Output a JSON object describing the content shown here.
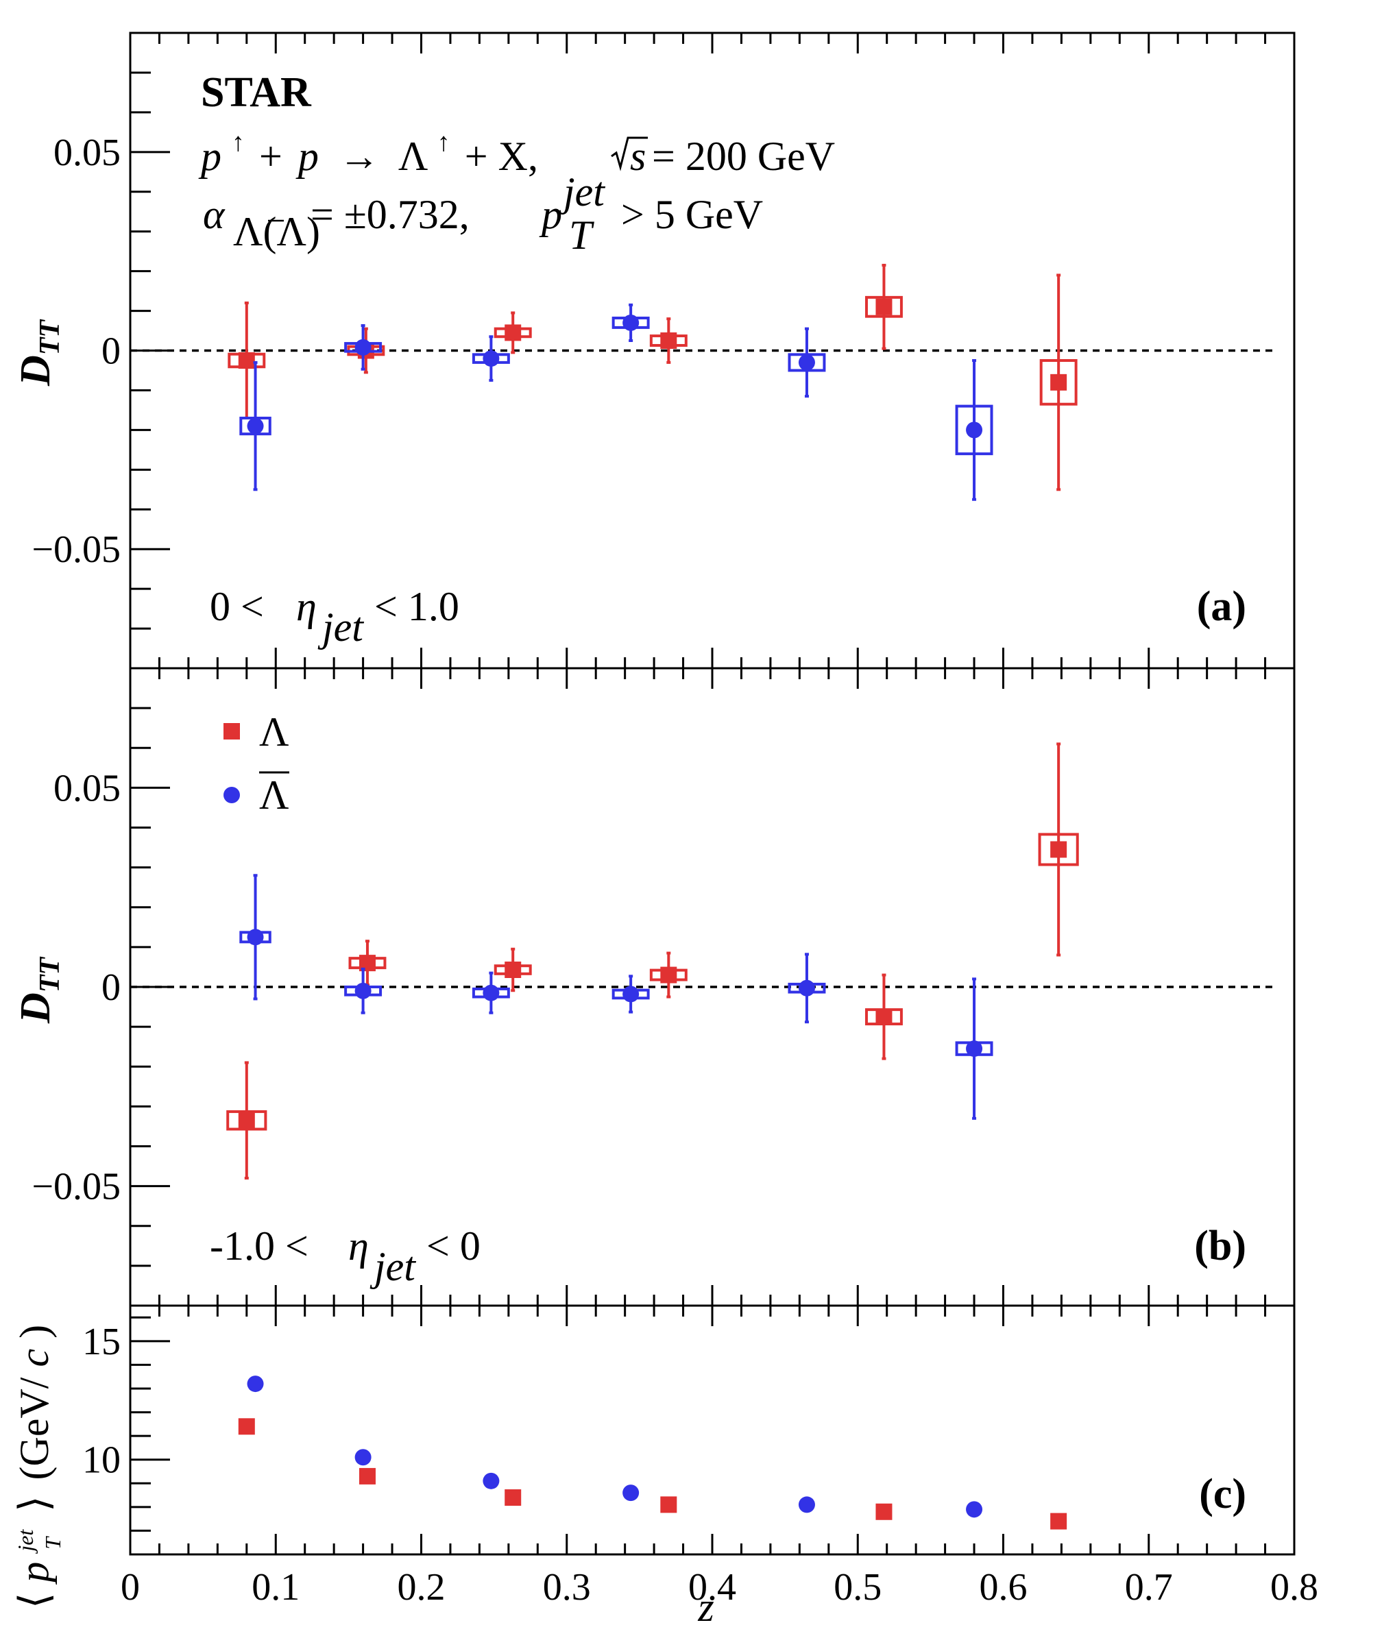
{
  "chart_data": [
    {
      "id": "a",
      "type": "scatter",
      "panel_label": "(a)",
      "ylabel": "D_TT",
      "ylim": [
        -0.08,
        0.08
      ],
      "yticks": [
        -0.05,
        0,
        0.05
      ],
      "ytick_labels": [
        "−0.05",
        "0",
        "0.05"
      ],
      "xlim": [
        0,
        0.8
      ],
      "reference_line": 0,
      "annotations": {
        "experiment": "STAR",
        "reaction_lhs": "p",
        "reaction_plus1": "+",
        "reaction_p2": "p",
        "reaction_arrow": "→",
        "reaction_lambda": "Λ",
        "reaction_rest": "+ X,",
        "sqrt_s_var": "s",
        "energy": "= 200 GeV",
        "alpha_symbol": "α",
        "alpha_sub": "Λ(Λ)",
        "alpha_value": "= ±0.732,",
        "pt_symbol": "p",
        "pt_sup": "jet",
        "pt_sub": "T",
        "pt_cut": "> 5 GeV",
        "eta_low": "0 <",
        "eta_symbol": "η",
        "eta_sub": "jet",
        "eta_high": "< 1.0"
      },
      "series": [
        {
          "name": "Λ",
          "marker": "square",
          "color": "#e03232",
          "points": [
            {
              "x": 0.08,
              "y": -0.0025,
              "err": 0.0145,
              "sys_w": 0.012,
              "sys_h": 0.0016
            },
            {
              "x": 0.162,
              "y": 0.0,
              "err": 0.0055,
              "sys_w": 0.012,
              "sys_h": 0.001
            },
            {
              "x": 0.263,
              "y": 0.0045,
              "err": 0.005,
              "sys_w": 0.012,
              "sys_h": 0.001
            },
            {
              "x": 0.37,
              "y": 0.0025,
              "err": 0.0055,
              "sys_w": 0.012,
              "sys_h": 0.0012
            },
            {
              "x": 0.518,
              "y": 0.011,
              "err": 0.0105,
              "sys_w": 0.012,
              "sys_h": 0.0024
            },
            {
              "x": 0.638,
              "y": -0.008,
              "err": 0.027,
              "sys_w": 0.012,
              "sys_h": 0.0055
            }
          ]
        },
        {
          "name": "Λ̄",
          "marker": "circle",
          "color": "#3232e6",
          "points": [
            {
              "x": 0.086,
              "y": -0.019,
              "err": 0.016,
              "sys_w": 0.01,
              "sys_h": 0.002
            },
            {
              "x": 0.16,
              "y": 0.0008,
              "err": 0.0055,
              "sys_w": 0.012,
              "sys_h": 0.001
            },
            {
              "x": 0.248,
              "y": -0.002,
              "err": 0.0055,
              "sys_w": 0.012,
              "sys_h": 0.001
            },
            {
              "x": 0.344,
              "y": 0.007,
              "err": 0.0045,
              "sys_w": 0.012,
              "sys_h": 0.0012
            },
            {
              "x": 0.465,
              "y": -0.003,
              "err": 0.0085,
              "sys_w": 0.012,
              "sys_h": 0.002
            },
            {
              "x": 0.58,
              "y": -0.02,
              "err": 0.0175,
              "sys_w": 0.012,
              "sys_h": 0.006
            }
          ]
        }
      ]
    },
    {
      "id": "b",
      "type": "scatter",
      "panel_label": "(b)",
      "ylabel": "D_TT",
      "ylim": [
        -0.08,
        0.08
      ],
      "yticks": [
        -0.05,
        0,
        0.05
      ],
      "ytick_labels": [
        "−0.05",
        "0",
        "0.05"
      ],
      "xlim": [
        0,
        0.8
      ],
      "reference_line": 0,
      "annotations": {
        "eta_low": "-1.0 <",
        "eta_symbol": "η",
        "eta_sub": "jet",
        "eta_high": "< 0"
      },
      "legend": {
        "placement": "top-left",
        "entries": [
          {
            "label": "Λ",
            "marker": "square",
            "color": "#e03232"
          },
          {
            "label": "Λ",
            "overline": true,
            "marker": "circle",
            "color": "#3232e6"
          }
        ]
      },
      "series": [
        {
          "name": "Λ",
          "marker": "square",
          "color": "#e03232",
          "points": [
            {
              "x": 0.08,
              "y": -0.0335,
              "err": 0.0145,
              "sys_w": 0.013,
              "sys_h": 0.0022
            },
            {
              "x": 0.163,
              "y": 0.006,
              "err": 0.0055,
              "sys_w": 0.012,
              "sys_h": 0.0012
            },
            {
              "x": 0.263,
              "y": 0.0043,
              "err": 0.0052,
              "sys_w": 0.012,
              "sys_h": 0.001
            },
            {
              "x": 0.37,
              "y": 0.003,
              "err": 0.0055,
              "sys_w": 0.012,
              "sys_h": 0.0012
            },
            {
              "x": 0.518,
              "y": -0.0075,
              "err": 0.0105,
              "sys_w": 0.012,
              "sys_h": 0.0018
            },
            {
              "x": 0.638,
              "y": 0.0345,
              "err": 0.0265,
              "sys_w": 0.013,
              "sys_h": 0.0038
            }
          ]
        },
        {
          "name": "Λ̄",
          "marker": "circle",
          "color": "#3232e6",
          "points": [
            {
              "x": 0.086,
              "y": 0.0125,
              "err": 0.0155,
              "sys_w": 0.01,
              "sys_h": 0.0012
            },
            {
              "x": 0.16,
              "y": -0.001,
              "err": 0.0055,
              "sys_w": 0.012,
              "sys_h": 0.001
            },
            {
              "x": 0.248,
              "y": -0.0015,
              "err": 0.005,
              "sys_w": 0.012,
              "sys_h": 0.001
            },
            {
              "x": 0.344,
              "y": -0.0018,
              "err": 0.0045,
              "sys_w": 0.012,
              "sys_h": 0.001
            },
            {
              "x": 0.465,
              "y": -0.0003,
              "err": 0.0085,
              "sys_w": 0.012,
              "sys_h": 0.001
            },
            {
              "x": 0.58,
              "y": -0.0155,
              "err": 0.0175,
              "sys_w": 0.012,
              "sys_h": 0.0015
            }
          ]
        }
      ]
    },
    {
      "id": "c",
      "type": "scatter",
      "panel_label": "(c)",
      "ylabel_bracket_left": "⟨",
      "ylabel_p": "p",
      "ylabel_sup": "jet",
      "ylabel_sub": "T",
      "ylabel_bracket_right": "⟩",
      "ylabel_unit": "(GeV/",
      "ylabel_unit_c": "c",
      "ylabel_unit_close": ")",
      "xlabel": "z",
      "ylim": [
        6.0,
        16.5
      ],
      "yticks": [
        10,
        15
      ],
      "ytick_labels": [
        "10",
        "15"
      ],
      "xlim": [
        0,
        0.8
      ],
      "xticks": [
        0,
        0.1,
        0.2,
        0.3,
        0.4,
        0.5,
        0.6,
        0.7,
        0.8
      ],
      "xtick_labels": [
        "0",
        "0.1",
        "0.2",
        "0.3",
        "0.4",
        "0.5",
        "0.6",
        "0.7",
        "0.8"
      ],
      "series": [
        {
          "name": "Λ",
          "marker": "square",
          "color": "#e03232",
          "points": [
            {
              "x": 0.08,
              "y": 11.4
            },
            {
              "x": 0.163,
              "y": 9.3
            },
            {
              "x": 0.263,
              "y": 8.4
            },
            {
              "x": 0.37,
              "y": 8.1
            },
            {
              "x": 0.518,
              "y": 7.8
            },
            {
              "x": 0.638,
              "y": 7.4
            }
          ]
        },
        {
          "name": "Λ̄",
          "marker": "circle",
          "color": "#3232e6",
          "points": [
            {
              "x": 0.086,
              "y": 13.2
            },
            {
              "x": 0.16,
              "y": 10.1
            },
            {
              "x": 0.248,
              "y": 9.1
            },
            {
              "x": 0.344,
              "y": 8.6
            },
            {
              "x": 0.465,
              "y": 8.1
            },
            {
              "x": 0.58,
              "y": 7.9
            }
          ]
        }
      ]
    }
  ]
}
